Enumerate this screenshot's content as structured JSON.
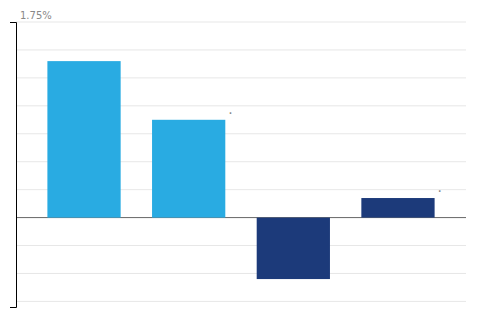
{
  "chart_data": {
    "type": "bar",
    "values": [
      2.8,
      1.75,
      -1.1,
      0.35
    ],
    "colors": [
      "#29ABE2",
      "#29ABE2",
      "#1C3A7A",
      "#1C3A7A"
    ],
    "ylim": [
      -1.6,
      3.5
    ],
    "yticks": [
      -1.5,
      -1.0,
      -0.5,
      0.0,
      0.5,
      1.0,
      1.5,
      2.0,
      2.5,
      3.0,
      3.5
    ],
    "grid": true,
    "tick_labels": false,
    "annotations": [
      "1.75%",
      "·",
      "·"
    ]
  }
}
